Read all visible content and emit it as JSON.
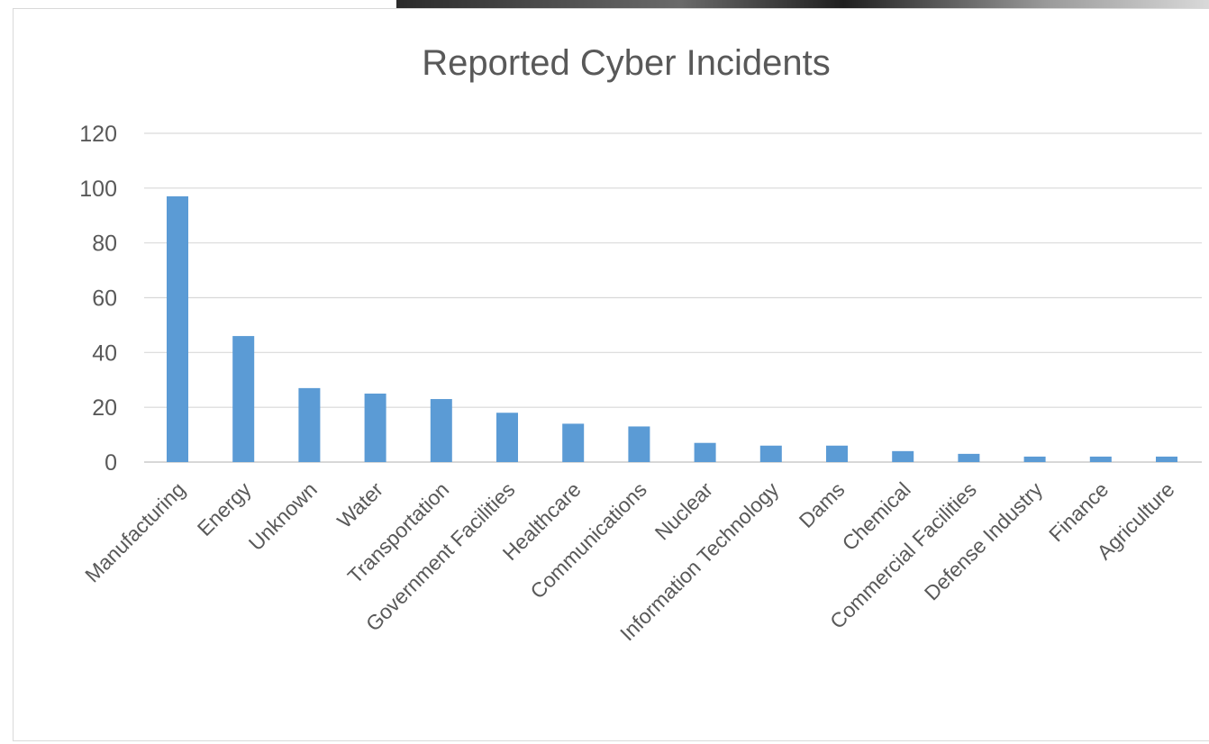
{
  "chart_data": {
    "type": "bar",
    "title": "Reported Cyber Incidents",
    "xlabel": "",
    "ylabel": "",
    "ylim": [
      0,
      120
    ],
    "yticks": [
      0,
      20,
      40,
      60,
      80,
      100,
      120
    ],
    "grid": true,
    "legend": "none",
    "bar_color": "#5b9bd5",
    "categories": [
      "Manufacturing",
      "Energy",
      "Unknown",
      "Water",
      "Transportation",
      "Government Facilities",
      "Healthcare",
      "Communications",
      "Nuclear",
      "Information Technology",
      "Dams",
      "Chemical",
      "Commercial Facilities",
      "Defense Industry",
      "Finance",
      "Agriculture"
    ],
    "values": [
      97,
      46,
      27,
      25,
      23,
      18,
      14,
      13,
      7,
      6,
      6,
      4,
      3,
      2,
      2,
      2
    ]
  }
}
